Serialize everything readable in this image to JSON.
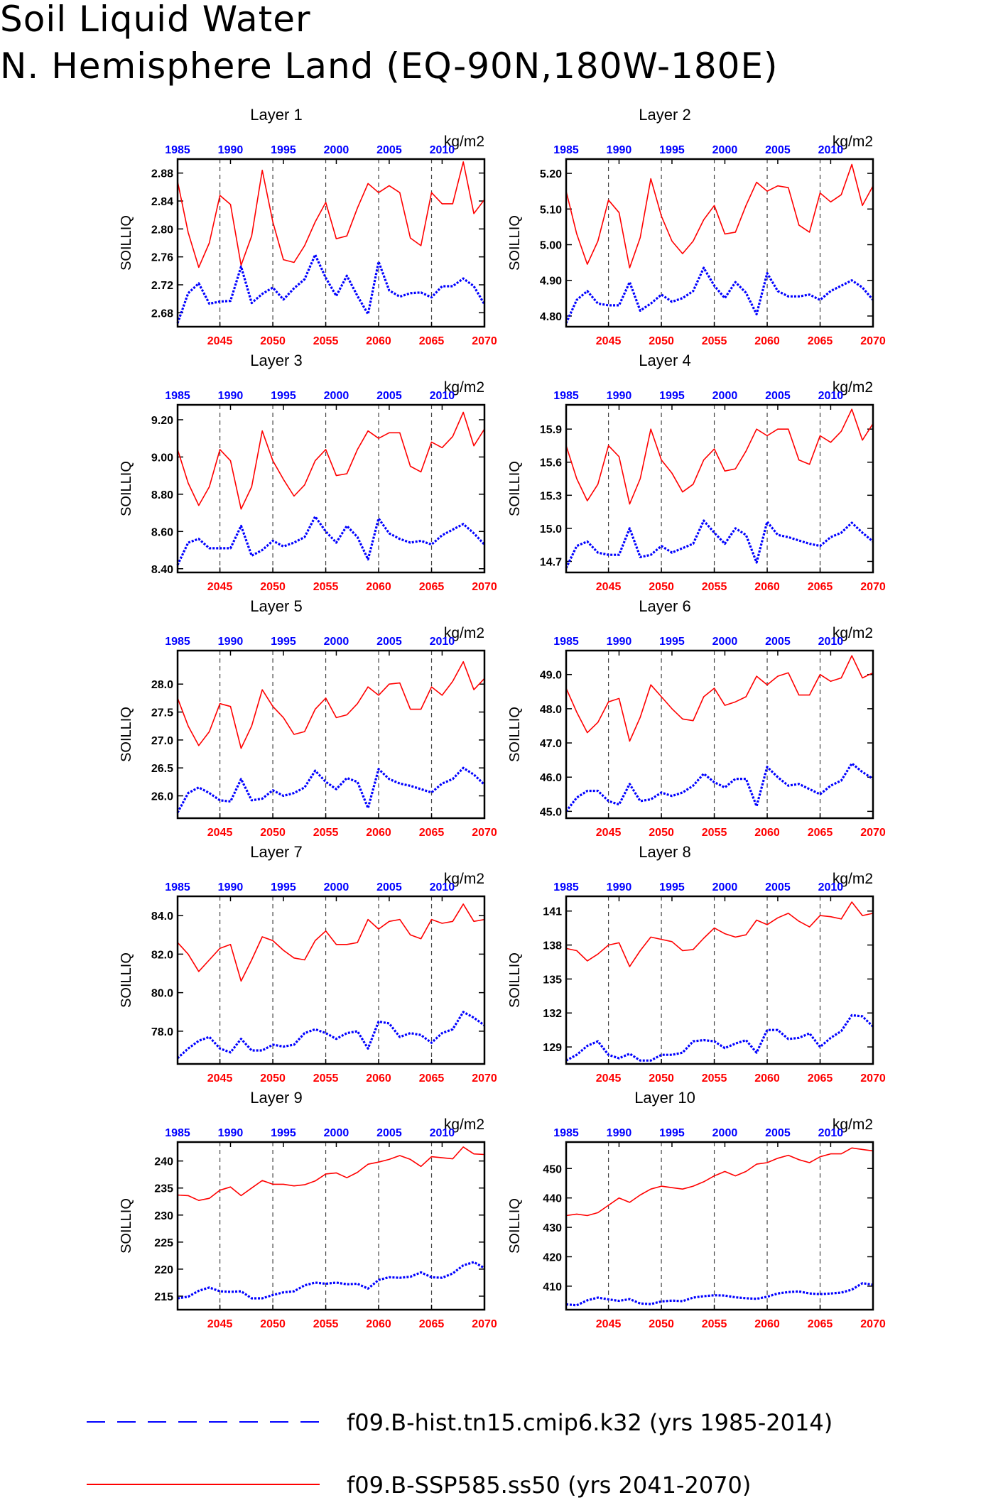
{
  "title_line1": "Soil Liquid Water",
  "title_line2": "N. Hemisphere Land (EQ-90N,180W-180E)",
  "colors": {
    "future": "#ff0000",
    "hist": "#0000ff"
  },
  "legend": {
    "hist": "f09.B-hist.tn15.cmip6.k32 (yrs 1985-2014)",
    "future": "f09.B-SSP585.ss50 (yrs 2041-2070)"
  },
  "chart_data": [
    {
      "type": "line",
      "title": "Layer 1",
      "ylabel": "SOILLIQ",
      "units": "kg/m2",
      "x_bottom_ticks": [
        "2045",
        "2050",
        "2055",
        "2060",
        "2065",
        "2070"
      ],
      "x_top_ticks": [
        "1985",
        "1990",
        "1995",
        "2000",
        "2005",
        "2010"
      ],
      "ylim": [
        2.66,
        2.9
      ],
      "yticks": [
        "2.68",
        "2.72",
        "2.76",
        "2.80",
        "2.84",
        "2.88"
      ],
      "series": [
        {
          "name": "f09.B-SSP585.ss50 (yrs 2041-2070)",
          "years": "2041-2070",
          "values": [
            2.868,
            2.795,
            2.745,
            2.78,
            2.848,
            2.835,
            2.748,
            2.79,
            2.884,
            2.81,
            2.756,
            2.752,
            2.776,
            2.81,
            2.838,
            2.786,
            2.79,
            2.83,
            2.865,
            2.852,
            2.862,
            2.852,
            2.787,
            2.776,
            2.852,
            2.836,
            2.836,
            2.896,
            2.822,
            2.842
          ]
        },
        {
          "name": "f09.B-hist.tn15.cmip6.k32 (yrs 1985-2014)",
          "years": "1985-2014",
          "values": [
            2.665,
            2.708,
            2.722,
            2.693,
            2.696,
            2.697,
            2.746,
            2.694,
            2.707,
            2.716,
            2.699,
            2.715,
            2.728,
            2.763,
            2.73,
            2.704,
            2.733,
            2.704,
            2.678,
            2.753,
            2.712,
            2.703,
            2.708,
            2.709,
            2.702,
            2.718,
            2.718,
            2.729,
            2.718,
            2.692
          ]
        }
      ]
    },
    {
      "type": "line",
      "title": "Layer 2",
      "ylabel": "SOILLIQ",
      "units": "kg/m2",
      "x_bottom_ticks": [
        "2045",
        "2050",
        "2055",
        "2060",
        "2065",
        "2070"
      ],
      "x_top_ticks": [
        "1985",
        "1990",
        "1995",
        "2000",
        "2005",
        "2010"
      ],
      "ylim": [
        4.77,
        5.24
      ],
      "yticks": [
        "4.80",
        "4.90",
        "5.00",
        "5.10",
        "5.20"
      ],
      "series": [
        {
          "name": "f09.B-SSP585.ss50 (yrs 2041-2070)",
          "years": "2041-2070",
          "values": [
            5.15,
            5.03,
            4.945,
            5.01,
            5.125,
            5.09,
            4.935,
            5.02,
            5.185,
            5.08,
            5.01,
            4.975,
            5.01,
            5.07,
            5.11,
            5.03,
            5.035,
            5.11,
            5.175,
            5.15,
            5.165,
            5.16,
            5.055,
            5.035,
            5.145,
            5.12,
            5.14,
            5.225,
            5.11,
            5.165
          ]
        },
        {
          "name": "f09.B-hist.tn15.cmip6.k32 (yrs 1985-2014)",
          "years": "1985-2014",
          "values": [
            4.78,
            4.845,
            4.87,
            4.835,
            4.83,
            4.83,
            4.895,
            4.815,
            4.835,
            4.86,
            4.84,
            4.85,
            4.87,
            4.935,
            4.885,
            4.85,
            4.895,
            4.865,
            4.805,
            4.92,
            4.87,
            4.855,
            4.855,
            4.86,
            4.845,
            4.87,
            4.885,
            4.9,
            4.88,
            4.845
          ]
        }
      ]
    },
    {
      "type": "line",
      "title": "Layer 3",
      "ylabel": "SOILLIQ",
      "units": "kg/m2",
      "x_bottom_ticks": [
        "2045",
        "2050",
        "2055",
        "2060",
        "2065",
        "2070"
      ],
      "x_top_ticks": [
        "1985",
        "1990",
        "1995",
        "2000",
        "2005",
        "2010"
      ],
      "ylim": [
        8.38,
        9.28
      ],
      "yticks": [
        "8.40",
        "8.60",
        "8.80",
        "9.00",
        "9.20"
      ],
      "series": [
        {
          "name": "f09.B-SSP585.ss50 (yrs 2041-2070)",
          "years": "2041-2070",
          "values": [
            9.04,
            8.86,
            8.74,
            8.84,
            9.04,
            8.98,
            8.72,
            8.84,
            9.14,
            8.98,
            8.88,
            8.79,
            8.85,
            8.98,
            9.04,
            8.9,
            8.91,
            9.04,
            9.14,
            9.1,
            9.13,
            9.13,
            8.95,
            8.92,
            9.08,
            9.05,
            9.11,
            9.24,
            9.06,
            9.15
          ]
        },
        {
          "name": "f09.B-hist.tn15.cmip6.k32 (yrs 1985-2014)",
          "years": "1985-2014",
          "values": [
            8.42,
            8.54,
            8.56,
            8.51,
            8.51,
            8.51,
            8.63,
            8.47,
            8.5,
            8.55,
            8.52,
            8.54,
            8.57,
            8.68,
            8.6,
            8.54,
            8.63,
            8.57,
            8.45,
            8.67,
            8.59,
            8.56,
            8.54,
            8.55,
            8.53,
            8.58,
            8.61,
            8.64,
            8.59,
            8.53
          ]
        }
      ]
    },
    {
      "type": "line",
      "title": "Layer 4",
      "ylabel": "SOILLIQ",
      "units": "kg/m2",
      "x_bottom_ticks": [
        "2045",
        "2050",
        "2055",
        "2060",
        "2065",
        "2070"
      ],
      "x_top_ticks": [
        "1985",
        "1990",
        "1995",
        "2000",
        "2005",
        "2010"
      ],
      "ylim": [
        14.6,
        16.12
      ],
      "yticks": [
        "14.7",
        "15.0",
        "15.3",
        "15.6",
        "15.9"
      ],
      "series": [
        {
          "name": "f09.B-SSP585.ss50 (yrs 2041-2070)",
          "years": "2041-2070",
          "values": [
            15.75,
            15.45,
            15.25,
            15.4,
            15.75,
            15.65,
            15.22,
            15.45,
            15.9,
            15.62,
            15.5,
            15.33,
            15.4,
            15.62,
            15.72,
            15.52,
            15.54,
            15.7,
            15.9,
            15.84,
            15.9,
            15.9,
            15.62,
            15.58,
            15.84,
            15.78,
            15.88,
            16.08,
            15.8,
            15.95
          ]
        },
        {
          "name": "f09.B-hist.tn15.cmip6.k32 (yrs 1985-2014)",
          "years": "1985-2014",
          "values": [
            14.64,
            14.84,
            14.88,
            14.78,
            14.76,
            14.76,
            15.0,
            14.74,
            14.76,
            14.84,
            14.78,
            14.82,
            14.86,
            15.07,
            14.96,
            14.86,
            15.0,
            14.94,
            14.69,
            15.06,
            14.94,
            14.92,
            14.89,
            14.86,
            14.84,
            14.92,
            14.96,
            15.05,
            14.96,
            14.88
          ]
        }
      ]
    },
    {
      "type": "line",
      "title": "Layer 5",
      "ylabel": "SOILLIQ",
      "units": "kg/m2",
      "x_bottom_ticks": [
        "2045",
        "2050",
        "2055",
        "2060",
        "2065",
        "2070"
      ],
      "x_top_ticks": [
        "1985",
        "1990",
        "1995",
        "2000",
        "2005",
        "2010"
      ],
      "ylim": [
        25.6,
        28.6
      ],
      "yticks": [
        "26.0",
        "26.5",
        "27.0",
        "27.5",
        "28.0"
      ],
      "series": [
        {
          "name": "f09.B-SSP585.ss50 (yrs 2041-2070)",
          "years": "2041-2070",
          "values": [
            27.75,
            27.25,
            26.9,
            27.15,
            27.65,
            27.6,
            26.85,
            27.25,
            27.9,
            27.6,
            27.4,
            27.1,
            27.15,
            27.55,
            27.75,
            27.4,
            27.45,
            27.65,
            27.95,
            27.8,
            28.0,
            28.02,
            27.55,
            27.55,
            27.95,
            27.8,
            28.05,
            28.4,
            27.9,
            28.1
          ]
        },
        {
          "name": "f09.B-hist.tn15.cmip6.k32 (yrs 1985-2014)",
          "years": "1985-2014",
          "values": [
            25.7,
            26.05,
            26.15,
            26.05,
            25.92,
            25.9,
            26.3,
            25.92,
            25.95,
            26.1,
            26.0,
            26.05,
            26.15,
            26.45,
            26.25,
            26.12,
            26.32,
            26.25,
            25.78,
            26.48,
            26.3,
            26.22,
            26.18,
            26.12,
            26.06,
            26.22,
            26.3,
            26.5,
            26.38,
            26.2
          ]
        }
      ]
    },
    {
      "type": "line",
      "title": "Layer 6",
      "ylabel": "SOILLIQ",
      "units": "kg/m2",
      "x_bottom_ticks": [
        "2045",
        "2050",
        "2055",
        "2060",
        "2065",
        "2070"
      ],
      "x_top_ticks": [
        "1985",
        "1990",
        "1995",
        "2000",
        "2005",
        "2010"
      ],
      "ylim": [
        44.8,
        49.7
      ],
      "yticks": [
        "45.0",
        "46.0",
        "47.0",
        "48.0",
        "49.0"
      ],
      "series": [
        {
          "name": "f09.B-SSP585.ss50 (yrs 2041-2070)",
          "years": "2041-2070",
          "values": [
            48.6,
            47.9,
            47.3,
            47.6,
            48.2,
            48.3,
            47.05,
            47.75,
            48.7,
            48.35,
            48.0,
            47.7,
            47.65,
            48.35,
            48.6,
            48.1,
            48.2,
            48.35,
            48.95,
            48.7,
            48.95,
            49.05,
            48.4,
            48.4,
            49.0,
            48.8,
            48.9,
            49.55,
            48.9,
            49.05
          ]
        },
        {
          "name": "f09.B-hist.tn15.cmip6.k32 (yrs 1985-2014)",
          "years": "1985-2014",
          "values": [
            45.0,
            45.4,
            45.6,
            45.6,
            45.3,
            45.2,
            45.8,
            45.3,
            45.35,
            45.55,
            45.45,
            45.55,
            45.75,
            46.1,
            45.85,
            45.7,
            45.95,
            45.95,
            45.15,
            46.3,
            46.0,
            45.75,
            45.8,
            45.65,
            45.5,
            45.75,
            45.9,
            46.4,
            46.15,
            45.95
          ]
        }
      ]
    },
    {
      "type": "line",
      "title": "Layer 7",
      "ylabel": "SOILLIQ",
      "units": "kg/m2",
      "x_bottom_ticks": [
        "2045",
        "2050",
        "2055",
        "2060",
        "2065",
        "2070"
      ],
      "x_top_ticks": [
        "1985",
        "1990",
        "1995",
        "2000",
        "2005",
        "2010"
      ],
      "ylim": [
        76.3,
        85.0
      ],
      "yticks": [
        "78.0",
        "80.0",
        "82.0",
        "84.0"
      ],
      "series": [
        {
          "name": "f09.B-SSP585.ss50 (yrs 2041-2070)",
          "years": "2041-2070",
          "values": [
            82.6,
            82.0,
            81.1,
            81.7,
            82.3,
            82.5,
            80.6,
            81.7,
            82.9,
            82.7,
            82.2,
            81.8,
            81.7,
            82.7,
            83.2,
            82.5,
            82.5,
            82.6,
            83.8,
            83.3,
            83.7,
            83.8,
            83.0,
            82.8,
            83.8,
            83.6,
            83.7,
            84.6,
            83.7,
            83.8
          ]
        },
        {
          "name": "f09.B-hist.tn15.cmip6.k32 (yrs 1985-2014)",
          "years": "1985-2014",
          "values": [
            76.6,
            77.1,
            77.5,
            77.7,
            77.1,
            76.9,
            77.6,
            77.0,
            77.0,
            77.3,
            77.2,
            77.3,
            77.9,
            78.1,
            77.9,
            77.6,
            77.9,
            78.0,
            77.1,
            78.5,
            78.4,
            77.7,
            77.9,
            77.8,
            77.4,
            77.9,
            78.1,
            79.0,
            78.7,
            78.3
          ]
        }
      ]
    },
    {
      "type": "line",
      "title": "Layer 8",
      "ylabel": "SOILLIQ",
      "units": "kg/m2",
      "x_bottom_ticks": [
        "2045",
        "2050",
        "2055",
        "2060",
        "2065",
        "2070"
      ],
      "x_top_ticks": [
        "1985",
        "1990",
        "1995",
        "2000",
        "2005",
        "2010"
      ],
      "ylim": [
        127.5,
        142.3
      ],
      "yticks": [
        "129",
        "132",
        "135",
        "138",
        "141"
      ],
      "series": [
        {
          "name": "f09.B-SSP585.ss50 (yrs 2041-2070)",
          "years": "2041-2070",
          "values": [
            137.7,
            137.5,
            136.6,
            137.2,
            138.0,
            138.2,
            136.1,
            137.5,
            138.7,
            138.5,
            138.3,
            137.5,
            137.6,
            138.6,
            139.5,
            139.0,
            138.7,
            138.9,
            140.2,
            139.8,
            140.4,
            140.8,
            140.1,
            139.6,
            140.6,
            140.5,
            140.3,
            141.8,
            140.6,
            140.8
          ]
        },
        {
          "name": "f09.B-hist.tn15.cmip6.k32 (yrs 1985-2014)",
          "years": "1985-2014",
          "values": [
            127.8,
            128.3,
            129.1,
            129.5,
            128.3,
            128.0,
            128.4,
            127.8,
            127.8,
            128.3,
            128.3,
            128.5,
            129.5,
            129.6,
            129.5,
            128.9,
            129.3,
            129.6,
            128.5,
            130.5,
            130.5,
            129.7,
            129.8,
            130.2,
            129.0,
            129.8,
            130.4,
            131.8,
            131.7,
            130.8
          ]
        }
      ]
    },
    {
      "type": "line",
      "title": "Layer 9",
      "ylabel": "SOILLIQ",
      "units": "kg/m2",
      "x_bottom_ticks": [
        "2045",
        "2050",
        "2055",
        "2060",
        "2065",
        "2070"
      ],
      "x_top_ticks": [
        "1985",
        "1990",
        "1995",
        "2000",
        "2005",
        "2010"
      ],
      "ylim": [
        212.5,
        243.5
      ],
      "yticks": [
        "215",
        "220",
        "225",
        "230",
        "235",
        "240"
      ],
      "series": [
        {
          "name": "f09.B-SSP585.ss50 (yrs 2041-2070)",
          "years": "2041-2070",
          "values": [
            233.7,
            233.6,
            232.7,
            233.1,
            234.6,
            235.2,
            233.6,
            235.0,
            236.4,
            235.7,
            235.7,
            235.4,
            235.6,
            236.3,
            237.6,
            237.8,
            236.9,
            237.9,
            239.4,
            239.8,
            240.3,
            241.0,
            240.3,
            239.0,
            240.8,
            240.6,
            240.4,
            242.6,
            241.3,
            241.2
          ]
        },
        {
          "name": "f09.B-hist.tn15.cmip6.k32 (yrs 1985-2014)",
          "years": "1985-2014",
          "values": [
            214.6,
            214.9,
            216.0,
            216.6,
            215.9,
            215.8,
            215.9,
            214.6,
            214.6,
            215.2,
            215.7,
            215.9,
            217.0,
            217.5,
            217.3,
            217.5,
            217.2,
            217.3,
            216.4,
            218.0,
            218.5,
            218.4,
            218.6,
            219.4,
            218.5,
            218.4,
            219.2,
            220.7,
            221.3,
            220.2
          ]
        }
      ]
    },
    {
      "type": "line",
      "title": "Layer 10",
      "ylabel": "SOILLIQ",
      "units": "kg/m2",
      "x_bottom_ticks": [
        "2045",
        "2050",
        "2055",
        "2060",
        "2065",
        "2070"
      ],
      "x_top_ticks": [
        "1985",
        "1990",
        "1995",
        "2000",
        "2005",
        "2010"
      ],
      "ylim": [
        402.0,
        459.0
      ],
      "yticks": [
        "410",
        "420",
        "430",
        "440",
        "450"
      ],
      "series": [
        {
          "name": "f09.B-SSP585.ss50 (yrs 2041-2070)",
          "years": "2041-2070",
          "values": [
            434.0,
            434.5,
            434.0,
            435.0,
            437.5,
            440.0,
            438.5,
            441.0,
            443.0,
            444.0,
            443.5,
            443.0,
            444.0,
            445.5,
            447.5,
            449.0,
            447.5,
            449.0,
            451.5,
            452.0,
            453.5,
            454.5,
            453.0,
            452.0,
            454.0,
            455.0,
            455.0,
            457.0,
            456.5,
            456.0
          ]
        },
        {
          "name": "f09.B-hist.tn15.cmip6.k32 (yrs 1985-2014)",
          "years": "1985-2014",
          "values": [
            403.8,
            403.5,
            405.2,
            406.1,
            405.5,
            405.0,
            405.6,
            404.1,
            403.9,
            404.8,
            405.1,
            404.9,
            406.1,
            406.6,
            406.9,
            406.8,
            406.2,
            405.9,
            405.7,
            406.4,
            407.5,
            408.0,
            408.2,
            407.5,
            407.3,
            407.5,
            407.8,
            408.8,
            411.0,
            410.5
          ]
        }
      ]
    }
  ]
}
